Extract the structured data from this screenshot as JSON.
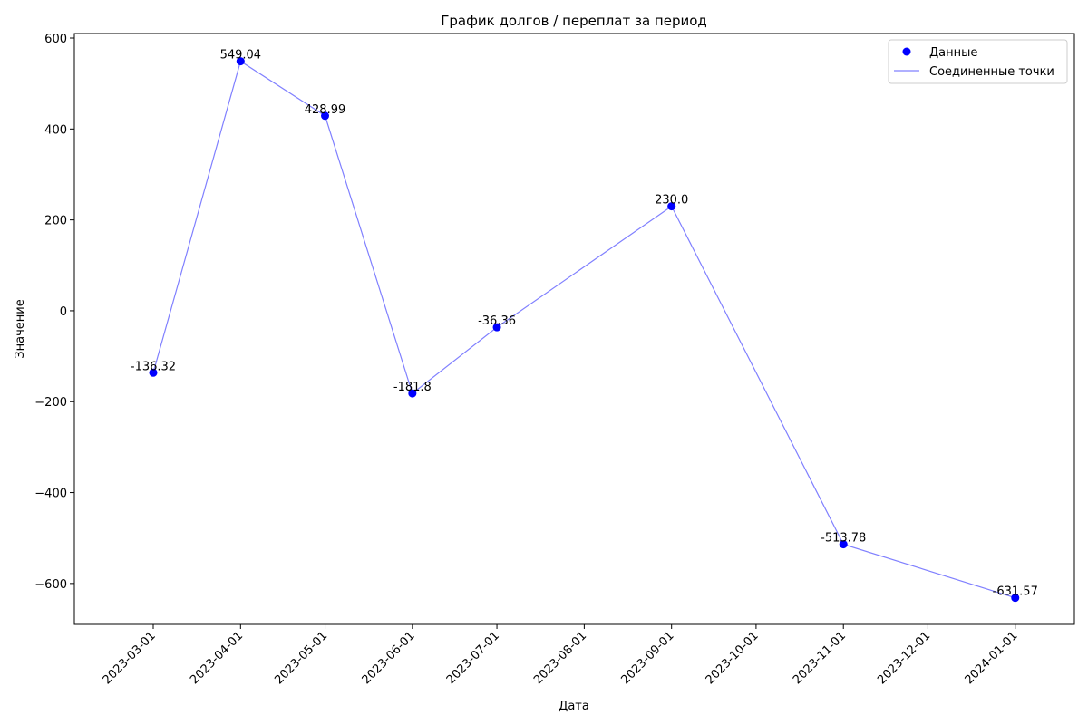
{
  "chart_data": {
    "type": "line",
    "title": "График долгов / переплат за период",
    "xlabel": "Дата",
    "ylabel": "Значение",
    "x_ticks": [
      "2023-03-01",
      "2023-04-01",
      "2023-05-01",
      "2023-06-01",
      "2023-07-01",
      "2023-08-01",
      "2023-09-01",
      "2023-10-01",
      "2023-11-01",
      "2023-12-01",
      "2024-01-01"
    ],
    "y_ticks": [
      -600,
      -400,
      -200,
      0,
      200,
      400,
      600
    ],
    "y_tick_labels": [
      "−600",
      "−400",
      "−200",
      "0",
      "200",
      "400",
      "600"
    ],
    "xlim": [
      "2023-02-01",
      "2024-01-22"
    ],
    "ylim": [
      -690,
      610
    ],
    "grid": false,
    "legend_position": "top-right",
    "series": [
      {
        "name": "Данные",
        "style": "markers",
        "color": "#0000ff",
        "points": [
          {
            "x": "2023-03-01",
            "y": -136.32,
            "label": "-136.32"
          },
          {
            "x": "2023-04-01",
            "y": 549.04,
            "label": "549.04"
          },
          {
            "x": "2023-05-01",
            "y": 428.99,
            "label": "428.99"
          },
          {
            "x": "2023-06-01",
            "y": -181.8,
            "label": "-181.8"
          },
          {
            "x": "2023-07-01",
            "y": -36.36,
            "label": "-36.36"
          },
          {
            "x": "2023-09-01",
            "y": 230.0,
            "label": "230.0"
          },
          {
            "x": "2023-11-01",
            "y": -513.78,
            "label": "-513.78"
          },
          {
            "x": "2024-01-01",
            "y": -631.57,
            "label": "-631.57"
          }
        ]
      },
      {
        "name": "Соединенные точки",
        "style": "line",
        "color": "#8080ff",
        "points": [
          {
            "x": "2023-03-01",
            "y": -136.32
          },
          {
            "x": "2023-04-01",
            "y": 549.04
          },
          {
            "x": "2023-05-01",
            "y": 428.99
          },
          {
            "x": "2023-06-01",
            "y": -181.8
          },
          {
            "x": "2023-07-01",
            "y": -36.36
          },
          {
            "x": "2023-09-01",
            "y": 230.0
          },
          {
            "x": "2023-11-01",
            "y": -513.78
          },
          {
            "x": "2024-01-01",
            "y": -631.57
          }
        ]
      }
    ]
  }
}
